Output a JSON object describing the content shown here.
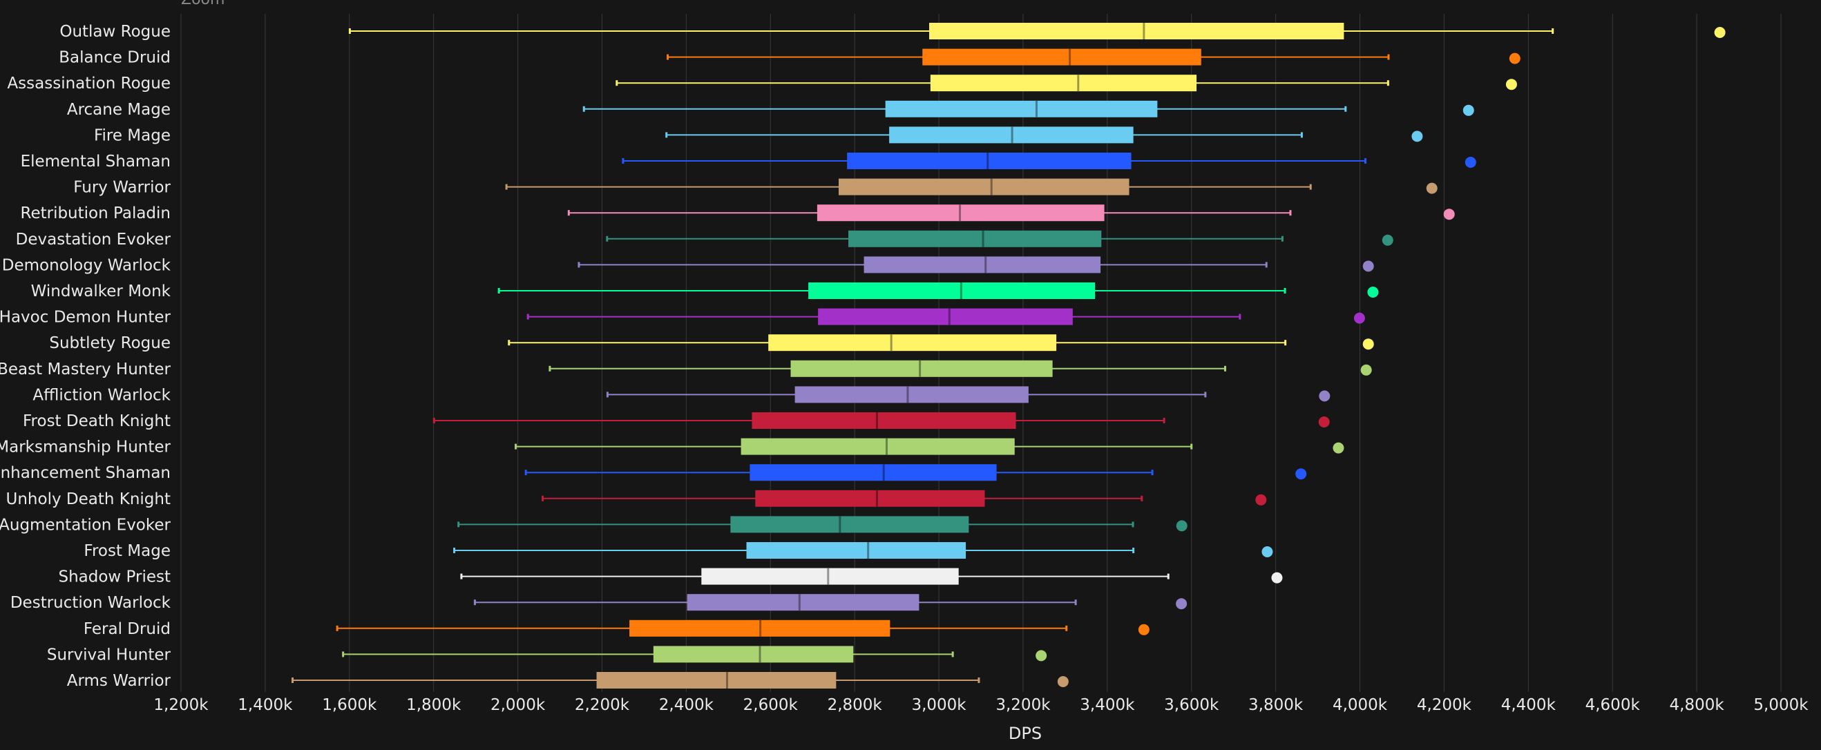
{
  "chart_data": {
    "type": "box",
    "top_note": "Zoom",
    "xlabel": "DPS",
    "xlim": [
      1200,
      5000
    ],
    "x_ticks": [
      1200,
      1400,
      1600,
      1800,
      2000,
      2200,
      2400,
      2600,
      2800,
      3000,
      3200,
      3400,
      3600,
      3800,
      4000,
      4200,
      4400,
      4600,
      4800,
      5000
    ],
    "x_tick_labels": [
      "1,200k",
      "1,400k",
      "1,600k",
      "1,800k",
      "2,000k",
      "2,200k",
      "2,400k",
      "2,600k",
      "2,800k",
      "3,000k",
      "3,200k",
      "3,400k",
      "3,600k",
      "3,800k",
      "4,000k",
      "4,200k",
      "4,400k",
      "4,600k",
      "4,800k",
      "5,000k"
    ],
    "grid": true,
    "background": "#161616",
    "gridline_color": "#3a3a3a",
    "specs": [
      {
        "name": "Outlaw Rogue",
        "color": "#FFF468",
        "min": 1601,
        "q1": 2977,
        "median": 3487,
        "q3": 3962,
        "max": 4458,
        "outlier": 4855
      },
      {
        "name": "Balance Druid",
        "color": "#FF7C0A",
        "min": 2356,
        "q1": 2961,
        "median": 3311,
        "q3": 3623,
        "max": 4068,
        "outlier": 4368
      },
      {
        "name": "Assassination Rogue",
        "color": "#FFF468",
        "min": 2235,
        "q1": 2980,
        "median": 3331,
        "q3": 3612,
        "max": 4067,
        "outlier": 4360
      },
      {
        "name": "Arcane Mage",
        "color": "#69CCF0",
        "min": 2157,
        "q1": 2873,
        "median": 3232,
        "q3": 3519,
        "max": 3966,
        "outlier": 4258
      },
      {
        "name": "Fire Mage",
        "color": "#69CCF0",
        "min": 2353,
        "q1": 2882,
        "median": 3174,
        "q3": 3462,
        "max": 3862,
        "outlier": 4136
      },
      {
        "name": "Elemental Shaman",
        "color": "#2459FF",
        "min": 2250,
        "q1": 2782,
        "median": 3116,
        "q3": 3457,
        "max": 4013,
        "outlier": 4263
      },
      {
        "name": "Fury Warrior",
        "color": "#C69B6D",
        "min": 1973,
        "q1": 2762,
        "median": 3125,
        "q3": 3452,
        "max": 3883,
        "outlier": 4171
      },
      {
        "name": "Retribution Paladin",
        "color": "#F48CBA",
        "min": 2121,
        "q1": 2711,
        "median": 3050,
        "q3": 3393,
        "max": 3835,
        "outlier": 4212
      },
      {
        "name": "Devastation Evoker",
        "color": "#33937F",
        "min": 2212,
        "q1": 2785,
        "median": 3105,
        "q3": 3386,
        "max": 3816,
        "outlier": 4066
      },
      {
        "name": "Demonology Warlock",
        "color": "#9482C9",
        "min": 2145,
        "q1": 2822,
        "median": 3111,
        "q3": 3384,
        "max": 3778,
        "outlier": 4020
      },
      {
        "name": "Windwalker Monk",
        "color": "#00FF98",
        "min": 1955,
        "q1": 2690,
        "median": 3053,
        "q3": 3371,
        "max": 3822,
        "outlier": 4031
      },
      {
        "name": "Havoc Demon Hunter",
        "color": "#A330C9",
        "min": 2024,
        "q1": 2713,
        "median": 3025,
        "q3": 3318,
        "max": 3715,
        "outlier": 3999
      },
      {
        "name": "Subtlety Rogue",
        "color": "#FFF468",
        "min": 1979,
        "q1": 2595,
        "median": 2887,
        "q3": 3279,
        "max": 3823,
        "outlier": 4020
      },
      {
        "name": "Beast Mastery Hunter",
        "color": "#AAD372",
        "min": 2076,
        "q1": 2648,
        "median": 2955,
        "q3": 3270,
        "max": 3680,
        "outlier": 4015
      },
      {
        "name": "Affliction Warlock",
        "color": "#9482C9",
        "min": 2213,
        "q1": 2658,
        "median": 2926,
        "q3": 3213,
        "max": 3633,
        "outlier": 3916
      },
      {
        "name": "Frost Death Knight",
        "color": "#C41E3A",
        "min": 1801,
        "q1": 2556,
        "median": 2853,
        "q3": 3183,
        "max": 3535,
        "outlier": 3915
      },
      {
        "name": "Marksmanship Hunter",
        "color": "#AAD372",
        "min": 1995,
        "q1": 2530,
        "median": 2876,
        "q3": 3180,
        "max": 3600,
        "outlier": 3949
      },
      {
        "name": "Enhancement Shaman",
        "color": "#2459FF",
        "min": 2019,
        "q1": 2551,
        "median": 2869,
        "q3": 3137,
        "max": 3507,
        "outlier": 3860
      },
      {
        "name": "Unholy Death Knight",
        "color": "#C41E3A",
        "min": 2059,
        "q1": 2564,
        "median": 2853,
        "q3": 3109,
        "max": 3482,
        "outlier": 3765
      },
      {
        "name": "Augmentation Evoker",
        "color": "#33937F",
        "min": 1859,
        "q1": 2505,
        "median": 2765,
        "q3": 3071,
        "max": 3461,
        "outlier": 3577
      },
      {
        "name": "Frost Mage",
        "color": "#69CCF0",
        "min": 1849,
        "q1": 2543,
        "median": 2832,
        "q3": 3064,
        "max": 3462,
        "outlier": 3780
      },
      {
        "name": "Shadow Priest",
        "color": "#F0F0F0",
        "min": 1866,
        "q1": 2436,
        "median": 2737,
        "q3": 3047,
        "max": 3545,
        "outlier": 3803
      },
      {
        "name": "Destruction Warlock",
        "color": "#9482C9",
        "min": 1898,
        "q1": 2402,
        "median": 2669,
        "q3": 2953,
        "max": 3325,
        "outlier": 3576
      },
      {
        "name": "Feral Druid",
        "color": "#FF7C0A",
        "min": 1571,
        "q1": 2265,
        "median": 2576,
        "q3": 2884,
        "max": 3303,
        "outlier": 3487
      },
      {
        "name": "Survival Hunter",
        "color": "#AAD372",
        "min": 1585,
        "q1": 2322,
        "median": 2575,
        "q3": 2797,
        "max": 3033,
        "outlier": 3243
      },
      {
        "name": "Arms Warrior",
        "color": "#C69B6D",
        "min": 1465,
        "q1": 2187,
        "median": 2497,
        "q3": 2756,
        "max": 3095,
        "outlier": 3295
      }
    ]
  }
}
